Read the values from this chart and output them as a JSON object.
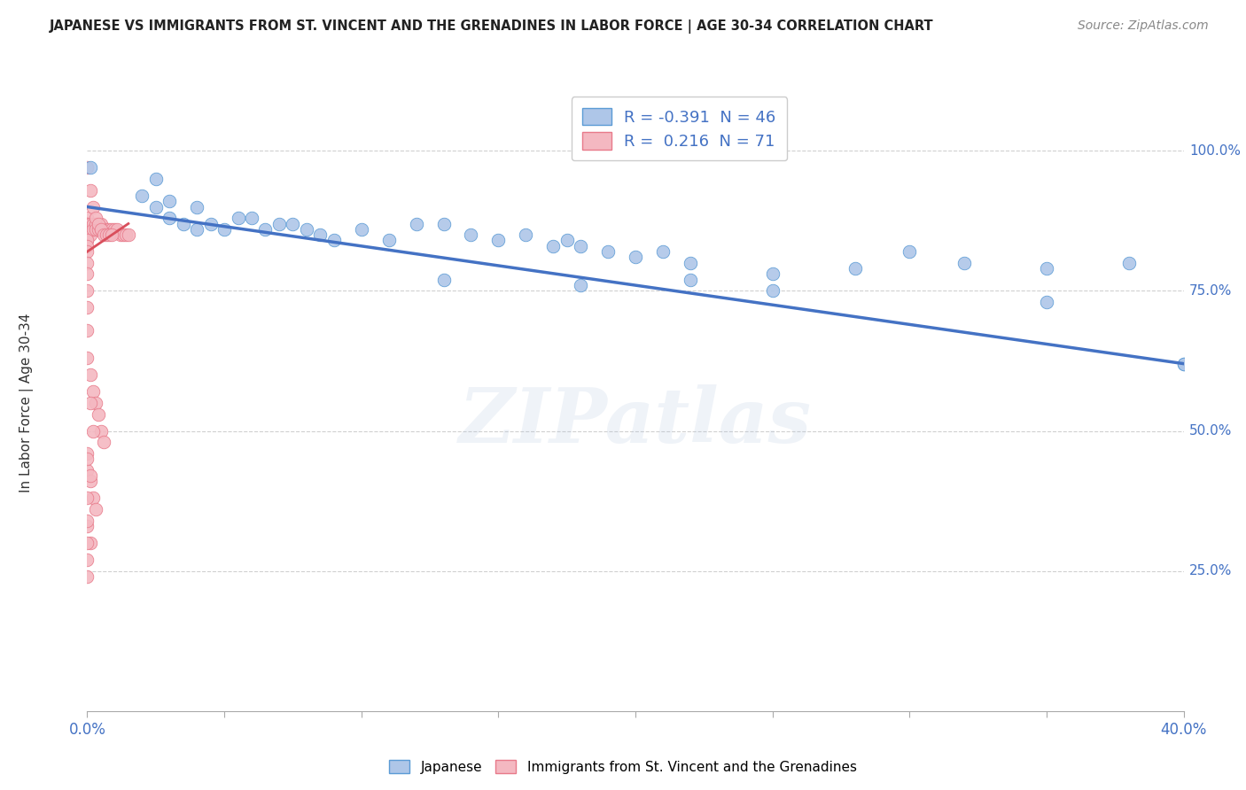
{
  "title": "JAPANESE VS IMMIGRANTS FROM ST. VINCENT AND THE GRENADINES IN LABOR FORCE | AGE 30-34 CORRELATION CHART",
  "source": "Source: ZipAtlas.com",
  "ylabel": "In Labor Force | Age 30-34",
  "legend1_label": "R = -0.391  N = 46",
  "legend2_label": "R =  0.216  N = 71",
  "legend_bottom1": "Japanese",
  "legend_bottom2": "Immigrants from St. Vincent and the Grenadines",
  "watermark": "ZIPatlas",
  "japanese_x": [
    0.001,
    0.02,
    0.025,
    0.025,
    0.03,
    0.03,
    0.035,
    0.04,
    0.04,
    0.045,
    0.05,
    0.055,
    0.06,
    0.065,
    0.07,
    0.075,
    0.08,
    0.085,
    0.09,
    0.1,
    0.11,
    0.12,
    0.13,
    0.14,
    0.15,
    0.16,
    0.17,
    0.175,
    0.18,
    0.19,
    0.2,
    0.21,
    0.22,
    0.25,
    0.28,
    0.3,
    0.32,
    0.35,
    0.38,
    0.4,
    0.13,
    0.18,
    0.22,
    0.25,
    0.35,
    0.4
  ],
  "japanese_y": [
    0.97,
    0.92,
    0.95,
    0.9,
    0.88,
    0.91,
    0.87,
    0.9,
    0.86,
    0.87,
    0.86,
    0.88,
    0.88,
    0.86,
    0.87,
    0.87,
    0.86,
    0.85,
    0.84,
    0.86,
    0.84,
    0.87,
    0.87,
    0.85,
    0.84,
    0.85,
    0.83,
    0.84,
    0.83,
    0.82,
    0.81,
    0.82,
    0.8,
    0.78,
    0.79,
    0.82,
    0.8,
    0.79,
    0.8,
    0.62,
    0.77,
    0.76,
    0.77,
    0.75,
    0.73,
    0.62
  ],
  "pink_x": [
    0.0,
    0.0,
    0.0,
    0.0,
    0.0,
    0.0,
    0.0,
    0.0,
    0.0,
    0.0,
    0.001,
    0.001,
    0.001,
    0.002,
    0.002,
    0.003,
    0.003,
    0.004,
    0.005,
    0.005,
    0.006,
    0.007,
    0.008,
    0.009,
    0.01,
    0.011,
    0.012,
    0.013,
    0.014,
    0.015,
    0.0,
    0.0,
    0.0,
    0.0,
    0.0,
    0.0,
    0.0,
    0.001,
    0.002,
    0.003,
    0.004,
    0.005,
    0.006,
    0.007,
    0.008,
    0.009,
    0.0,
    0.0,
    0.0,
    0.001,
    0.002,
    0.003,
    0.004,
    0.005,
    0.006,
    0.0,
    0.0,
    0.001,
    0.002,
    0.003,
    0.0,
    0.001,
    0.0,
    0.0,
    0.001,
    0.002,
    0.0,
    0.001,
    0.0,
    0.0,
    0.0
  ],
  "pink_y": [
    0.88,
    0.87,
    0.87,
    0.86,
    0.86,
    0.86,
    0.85,
    0.85,
    0.85,
    0.84,
    0.87,
    0.86,
    0.85,
    0.87,
    0.86,
    0.87,
    0.86,
    0.86,
    0.87,
    0.86,
    0.86,
    0.86,
    0.86,
    0.86,
    0.86,
    0.86,
    0.85,
    0.85,
    0.85,
    0.85,
    0.84,
    0.83,
    0.82,
    0.8,
    0.78,
    0.75,
    0.97,
    0.93,
    0.9,
    0.88,
    0.87,
    0.86,
    0.85,
    0.85,
    0.85,
    0.85,
    0.72,
    0.68,
    0.63,
    0.6,
    0.57,
    0.55,
    0.53,
    0.5,
    0.48,
    0.46,
    0.43,
    0.41,
    0.38,
    0.36,
    0.33,
    0.3,
    0.27,
    0.24,
    0.55,
    0.5,
    0.45,
    0.42,
    0.38,
    0.34,
    0.3
  ],
  "xlim": [
    0.0,
    0.4
  ],
  "ylim": [
    0.0,
    1.1
  ],
  "blue_trend_x": [
    0.0,
    0.4
  ],
  "blue_trend_y": [
    0.9,
    0.62
  ],
  "pink_trend_x": [
    0.0,
    0.015
  ],
  "pink_trend_y": [
    0.82,
    0.87
  ],
  "xlabel_ticks": [
    0.0,
    0.05,
    0.1,
    0.15,
    0.2,
    0.25,
    0.3,
    0.35,
    0.4
  ],
  "ytick_positions": [
    0.25,
    0.5,
    0.75,
    1.0
  ],
  "ytick_labels": [
    "25.0%",
    "50.0%",
    "75.0%",
    "100.0%"
  ],
  "bg_color": "#ffffff",
  "blue_fill": "#aec6e8",
  "blue_edge": "#5b9bd5",
  "pink_fill": "#f4b8c1",
  "pink_edge": "#e87a8a",
  "trend_blue_color": "#4472c4",
  "trend_pink_color": "#d94f5c",
  "grid_color": "#d0d0d0",
  "title_color": "#222222",
  "axis_label_color": "#4472c4",
  "source_color": "#888888",
  "ylabel_color": "#333333"
}
